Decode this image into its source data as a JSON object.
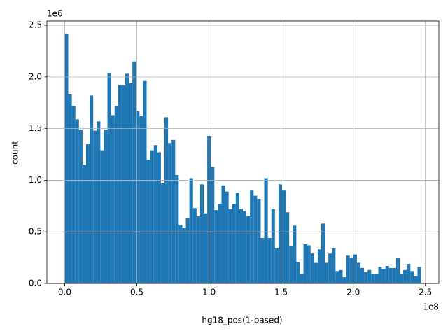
{
  "chart_data": {
    "type": "histogram",
    "xlabel": "hg18_pos(1-based)",
    "ylabel": "count",
    "x_offset_label": "1e8",
    "y_offset_label": "1e6",
    "color": "#1f77b4",
    "grid": true,
    "bins": [
      0,
      2470000,
      4940000,
      7410000,
      9880000,
      12350000,
      14820000,
      17290000,
      19760000,
      22230000,
      24700000,
      27170000,
      29640000,
      32110000,
      34580000,
      37050000,
      39520000,
      41990000,
      44460000,
      46930000,
      49400000,
      51870000,
      54340000,
      56810000,
      59280000,
      61750000,
      64220000,
      66690000,
      69160000,
      71630000,
      74100000,
      76570000,
      79040000,
      81510000,
      83980000,
      86450000,
      88920000,
      91390000,
      93860000,
      96330000,
      98800000,
      101270000,
      103740000,
      106210000,
      108680000,
      111150000,
      113620000,
      116090000,
      118560000,
      121030000,
      123500000,
      125970000,
      128440000,
      130910000,
      133380000,
      135850000,
      138320000,
      140790000,
      143260000,
      145730000,
      148200000,
      150670000,
      153140000,
      155610000,
      158080000,
      160550000,
      163020000,
      165490000,
      167960000,
      170430000,
      172900000,
      175370000,
      177840000,
      180310000,
      182780000,
      185250000,
      187720000,
      190190000,
      192660000,
      195130000,
      197600000,
      200070000,
      202540000,
      205010000,
      207480000,
      209950000,
      212420000,
      214890000,
      217360000,
      219830000,
      222300000,
      224770000,
      227240000,
      229710000,
      232180000,
      234650000,
      237120000,
      239590000,
      242060000,
      244530000,
      247000000
    ],
    "counts": [
      2420000,
      1830000,
      1720000,
      1590000,
      1490000,
      1150000,
      1350000,
      1820000,
      1480000,
      1570000,
      1290000,
      1490000,
      2040000,
      1630000,
      1720000,
      1920000,
      1920000,
      2030000,
      1940000,
      2150000,
      1670000,
      1620000,
      1960000,
      1200000,
      1290000,
      1340000,
      1270000,
      970000,
      1610000,
      1360000,
      1390000,
      1050000,
      570000,
      540000,
      630000,
      1020000,
      730000,
      650000,
      960000,
      680000,
      1430000,
      1130000,
      710000,
      770000,
      950000,
      890000,
      720000,
      770000,
      880000,
      720000,
      700000,
      650000,
      900000,
      850000,
      820000,
      440000,
      1020000,
      440000,
      720000,
      340000,
      960000,
      900000,
      690000,
      360000,
      560000,
      210000,
      90000,
      380000,
      370000,
      290000,
      200000,
      330000,
      580000,
      200000,
      290000,
      340000,
      120000,
      130000,
      60000,
      270000,
      250000,
      280000,
      200000,
      150000,
      110000,
      130000,
      90000,
      90000,
      160000,
      140000,
      170000,
      150000,
      150000,
      250000,
      90000,
      130000,
      190000,
      120000,
      70000,
      160000
    ],
    "xlim": [
      -12350000,
      259350000
    ],
    "xticks": [
      {
        "value": 0,
        "label": "0.0"
      },
      {
        "value": 50000000,
        "label": "0.5"
      },
      {
        "value": 100000000,
        "label": "1.0"
      },
      {
        "value": 150000000,
        "label": "1.5"
      },
      {
        "value": 200000000,
        "label": "2.0"
      },
      {
        "value": 250000000,
        "label": "2.5"
      }
    ],
    "ylim": [
      0,
      2541000
    ],
    "yticks": [
      {
        "value": 0,
        "label": "0.0"
      },
      {
        "value": 500000,
        "label": "0.5"
      },
      {
        "value": 1000000,
        "label": "1.0"
      },
      {
        "value": 1500000,
        "label": "1.5"
      },
      {
        "value": 2000000,
        "label": "2.0"
      },
      {
        "value": 2500000,
        "label": "2.5"
      }
    ]
  }
}
